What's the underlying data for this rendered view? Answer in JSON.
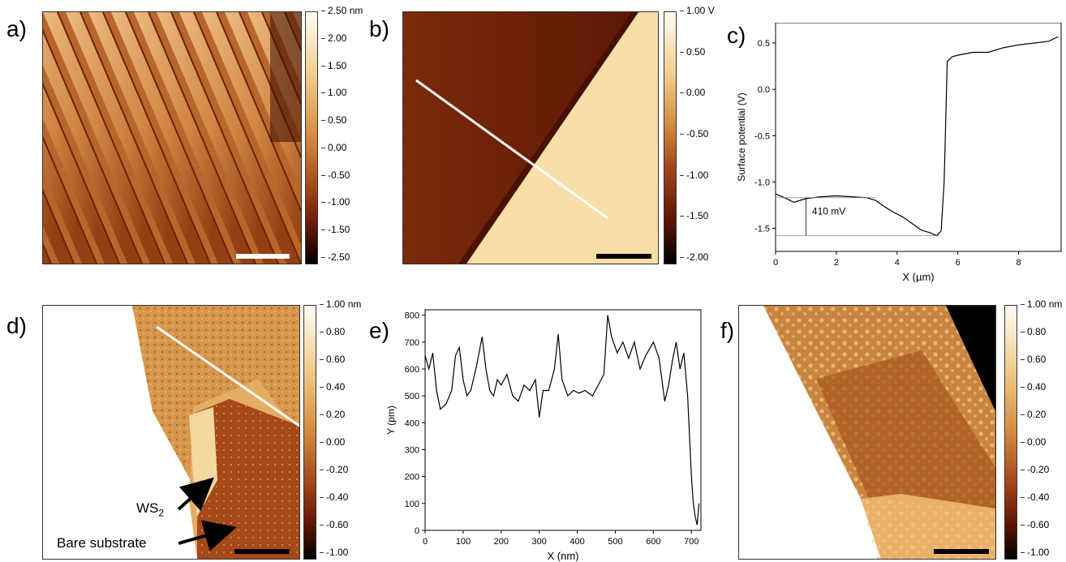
{
  "panels": {
    "a": {
      "letter": "a)",
      "colorbar": {
        "ticks": [
          "2.50 nm",
          "2.00",
          "1.50",
          "1.00",
          "0.50",
          "0.00",
          "-0.50",
          "-1.00",
          "-1.50",
          "-2.50"
        ]
      }
    },
    "b": {
      "letter": "b)",
      "colorbar": {
        "ticks": [
          "1.00 V",
          "0.50",
          "0.00",
          "-0.50",
          "-1.00",
          "-1.50",
          "-2.00"
        ]
      }
    },
    "c": {
      "letter": "c)"
    },
    "d": {
      "letter": "d)",
      "colorbar": {
        "ticks": [
          "1.00 nm",
          "0.80",
          "0.60",
          "0.40",
          "0.20",
          "0.00",
          "-0.20",
          "-0.40",
          "-0.60",
          "-1.00"
        ]
      },
      "labels": {
        "ws_main": "WS",
        "ws_sub": "2",
        "bare": "Bare substrate"
      }
    },
    "e": {
      "letter": "e)"
    },
    "f": {
      "letter": "f)",
      "colorbar": {
        "ticks": [
          "1.00 nm",
          "0.80",
          "0.60",
          "0.40",
          "0.20",
          "0.00",
          "-0.20",
          "-0.40",
          "-0.60",
          "-1.00"
        ]
      }
    }
  },
  "chart_data": [
    {
      "id": "c",
      "type": "line",
      "xlabel": "X (µm)",
      "ylabel": "Surface potential (V)",
      "xlim": [
        0,
        9.4
      ],
      "ylim": [
        -1.75,
        0.72
      ],
      "xticks": [
        0,
        2,
        4,
        6,
        8
      ],
      "yticks": [
        0.5,
        0.0,
        -0.5,
        -1.0,
        -1.5
      ],
      "annotation": "410 mV",
      "series": [
        {
          "x": [
            0,
            0.3,
            0.6,
            1,
            1.5,
            2,
            2.5,
            3,
            3.3,
            3.6,
            3.9,
            4.2,
            4.5,
            4.8,
            5.1,
            5.3,
            5.45,
            5.55,
            5.65,
            5.8,
            6,
            6.5,
            7,
            7.5,
            8,
            8.5,
            9,
            9.3
          ],
          "y": [
            -1.13,
            -1.17,
            -1.22,
            -1.18,
            -1.16,
            -1.15,
            -1.16,
            -1.17,
            -1.2,
            -1.27,
            -1.33,
            -1.38,
            -1.45,
            -1.52,
            -1.55,
            -1.58,
            -1.53,
            -1.0,
            0.3,
            0.35,
            0.37,
            0.4,
            0.4,
            0.45,
            0.48,
            0.5,
            0.52,
            0.57
          ]
        }
      ]
    },
    {
      "id": "e",
      "type": "line",
      "xlabel": "X (nm)",
      "ylabel": "Y (pm)",
      "xlim": [
        0,
        725
      ],
      "ylim": [
        0,
        820
      ],
      "xticks": [
        0,
        100,
        200,
        300,
        400,
        500,
        600,
        700
      ],
      "yticks": [
        0,
        100,
        200,
        300,
        400,
        500,
        600,
        700,
        800
      ],
      "series": [
        {
          "x": [
            0,
            10,
            20,
            30,
            40,
            55,
            70,
            80,
            90,
            100,
            110,
            120,
            135,
            150,
            160,
            170,
            180,
            190,
            200,
            215,
            230,
            245,
            260,
            275,
            290,
            300,
            310,
            325,
            340,
            350,
            360,
            375,
            390,
            405,
            420,
            440,
            455,
            470,
            480,
            490,
            505,
            520,
            535,
            550,
            565,
            580,
            600,
            615,
            630,
            640,
            650,
            660,
            670,
            680,
            690,
            700,
            705,
            710,
            715,
            720
          ],
          "y": [
            650,
            600,
            660,
            520,
            450,
            470,
            520,
            650,
            680,
            560,
            500,
            520,
            610,
            720,
            600,
            520,
            500,
            560,
            540,
            580,
            500,
            480,
            540,
            520,
            560,
            420,
            520,
            520,
            600,
            730,
            560,
            500,
            520,
            510,
            520,
            500,
            540,
            580,
            800,
            720,
            660,
            700,
            640,
            700,
            600,
            650,
            700,
            640,
            480,
            540,
            630,
            700,
            600,
            660,
            500,
            200,
            100,
            50,
            20,
            100
          ]
        }
      ]
    }
  ]
}
